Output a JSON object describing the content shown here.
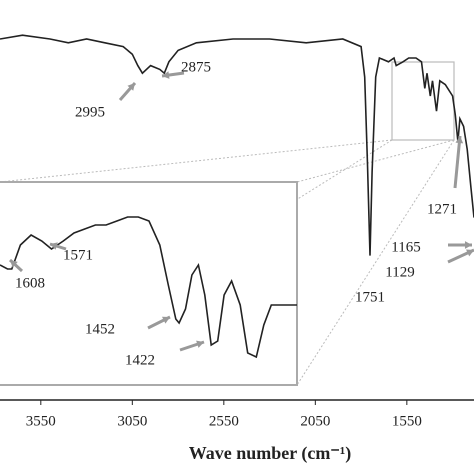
{
  "chart_data": [
    {
      "type": "line",
      "color": "#222222",
      "xlabel": "Wave number (cm⁻¹)",
      "xlim": [
        3773,
        1183
      ],
      "ylim": [
        0,
        100
      ],
      "xticks": [
        3550,
        3050,
        2550,
        2050,
        1550
      ],
      "x": [
        3773,
        3650,
        3500,
        3400,
        3300,
        3200,
        3100,
        3050,
        3020,
        2995,
        2950,
        2900,
        2875,
        2850,
        2800,
        2700,
        2500,
        2300,
        2100,
        1900,
        1800,
        1780,
        1765,
        1751,
        1740,
        1720,
        1700,
        1650,
        1620,
        1608,
        1571,
        1540,
        1500,
        1470,
        1452,
        1440,
        1422,
        1410,
        1388,
        1370,
        1340,
        1300,
        1285,
        1271,
        1260,
        1240,
        1220,
        1200,
        1183
      ],
      "values": [
        95,
        96,
        95,
        94,
        95,
        94,
        93,
        91,
        88,
        86,
        88,
        87,
        86,
        89,
        92,
        94,
        95,
        95,
        94,
        95,
        93,
        85,
        62,
        38,
        60,
        85,
        90,
        89,
        90,
        88,
        89,
        90,
        90,
        89,
        82,
        86,
        80,
        84,
        76,
        84,
        83,
        80,
        75,
        68,
        74,
        72,
        66,
        56,
        48
      ],
      "annotations": [
        2995,
        2875,
        1751,
        1271,
        1165,
        1129
      ]
    },
    {
      "type": "line",
      "color": "#222222",
      "xlim": [
        1619,
        1342
      ],
      "ylim": [
        0,
        100
      ],
      "x": [
        1619,
        1612,
        1608,
        1600,
        1590,
        1580,
        1571,
        1560,
        1550,
        1540,
        1530,
        1520,
        1510,
        1500,
        1490,
        1480,
        1470,
        1462,
        1455,
        1452,
        1446,
        1440,
        1434,
        1428,
        1422,
        1416,
        1410,
        1403,
        1395,
        1388,
        1380,
        1373,
        1366,
        1355,
        1342
      ],
      "values": [
        60,
        58,
        58,
        70,
        75,
        72,
        68,
        72,
        76,
        78,
        80,
        80,
        82,
        84,
        84,
        82,
        70,
        50,
        33,
        31,
        38,
        55,
        60,
        45,
        20,
        22,
        45,
        52,
        40,
        16,
        14,
        30,
        40,
        40,
        40
      ],
      "annotations": [
        1608,
        1571,
        1452,
        1422
      ]
    }
  ]
}
